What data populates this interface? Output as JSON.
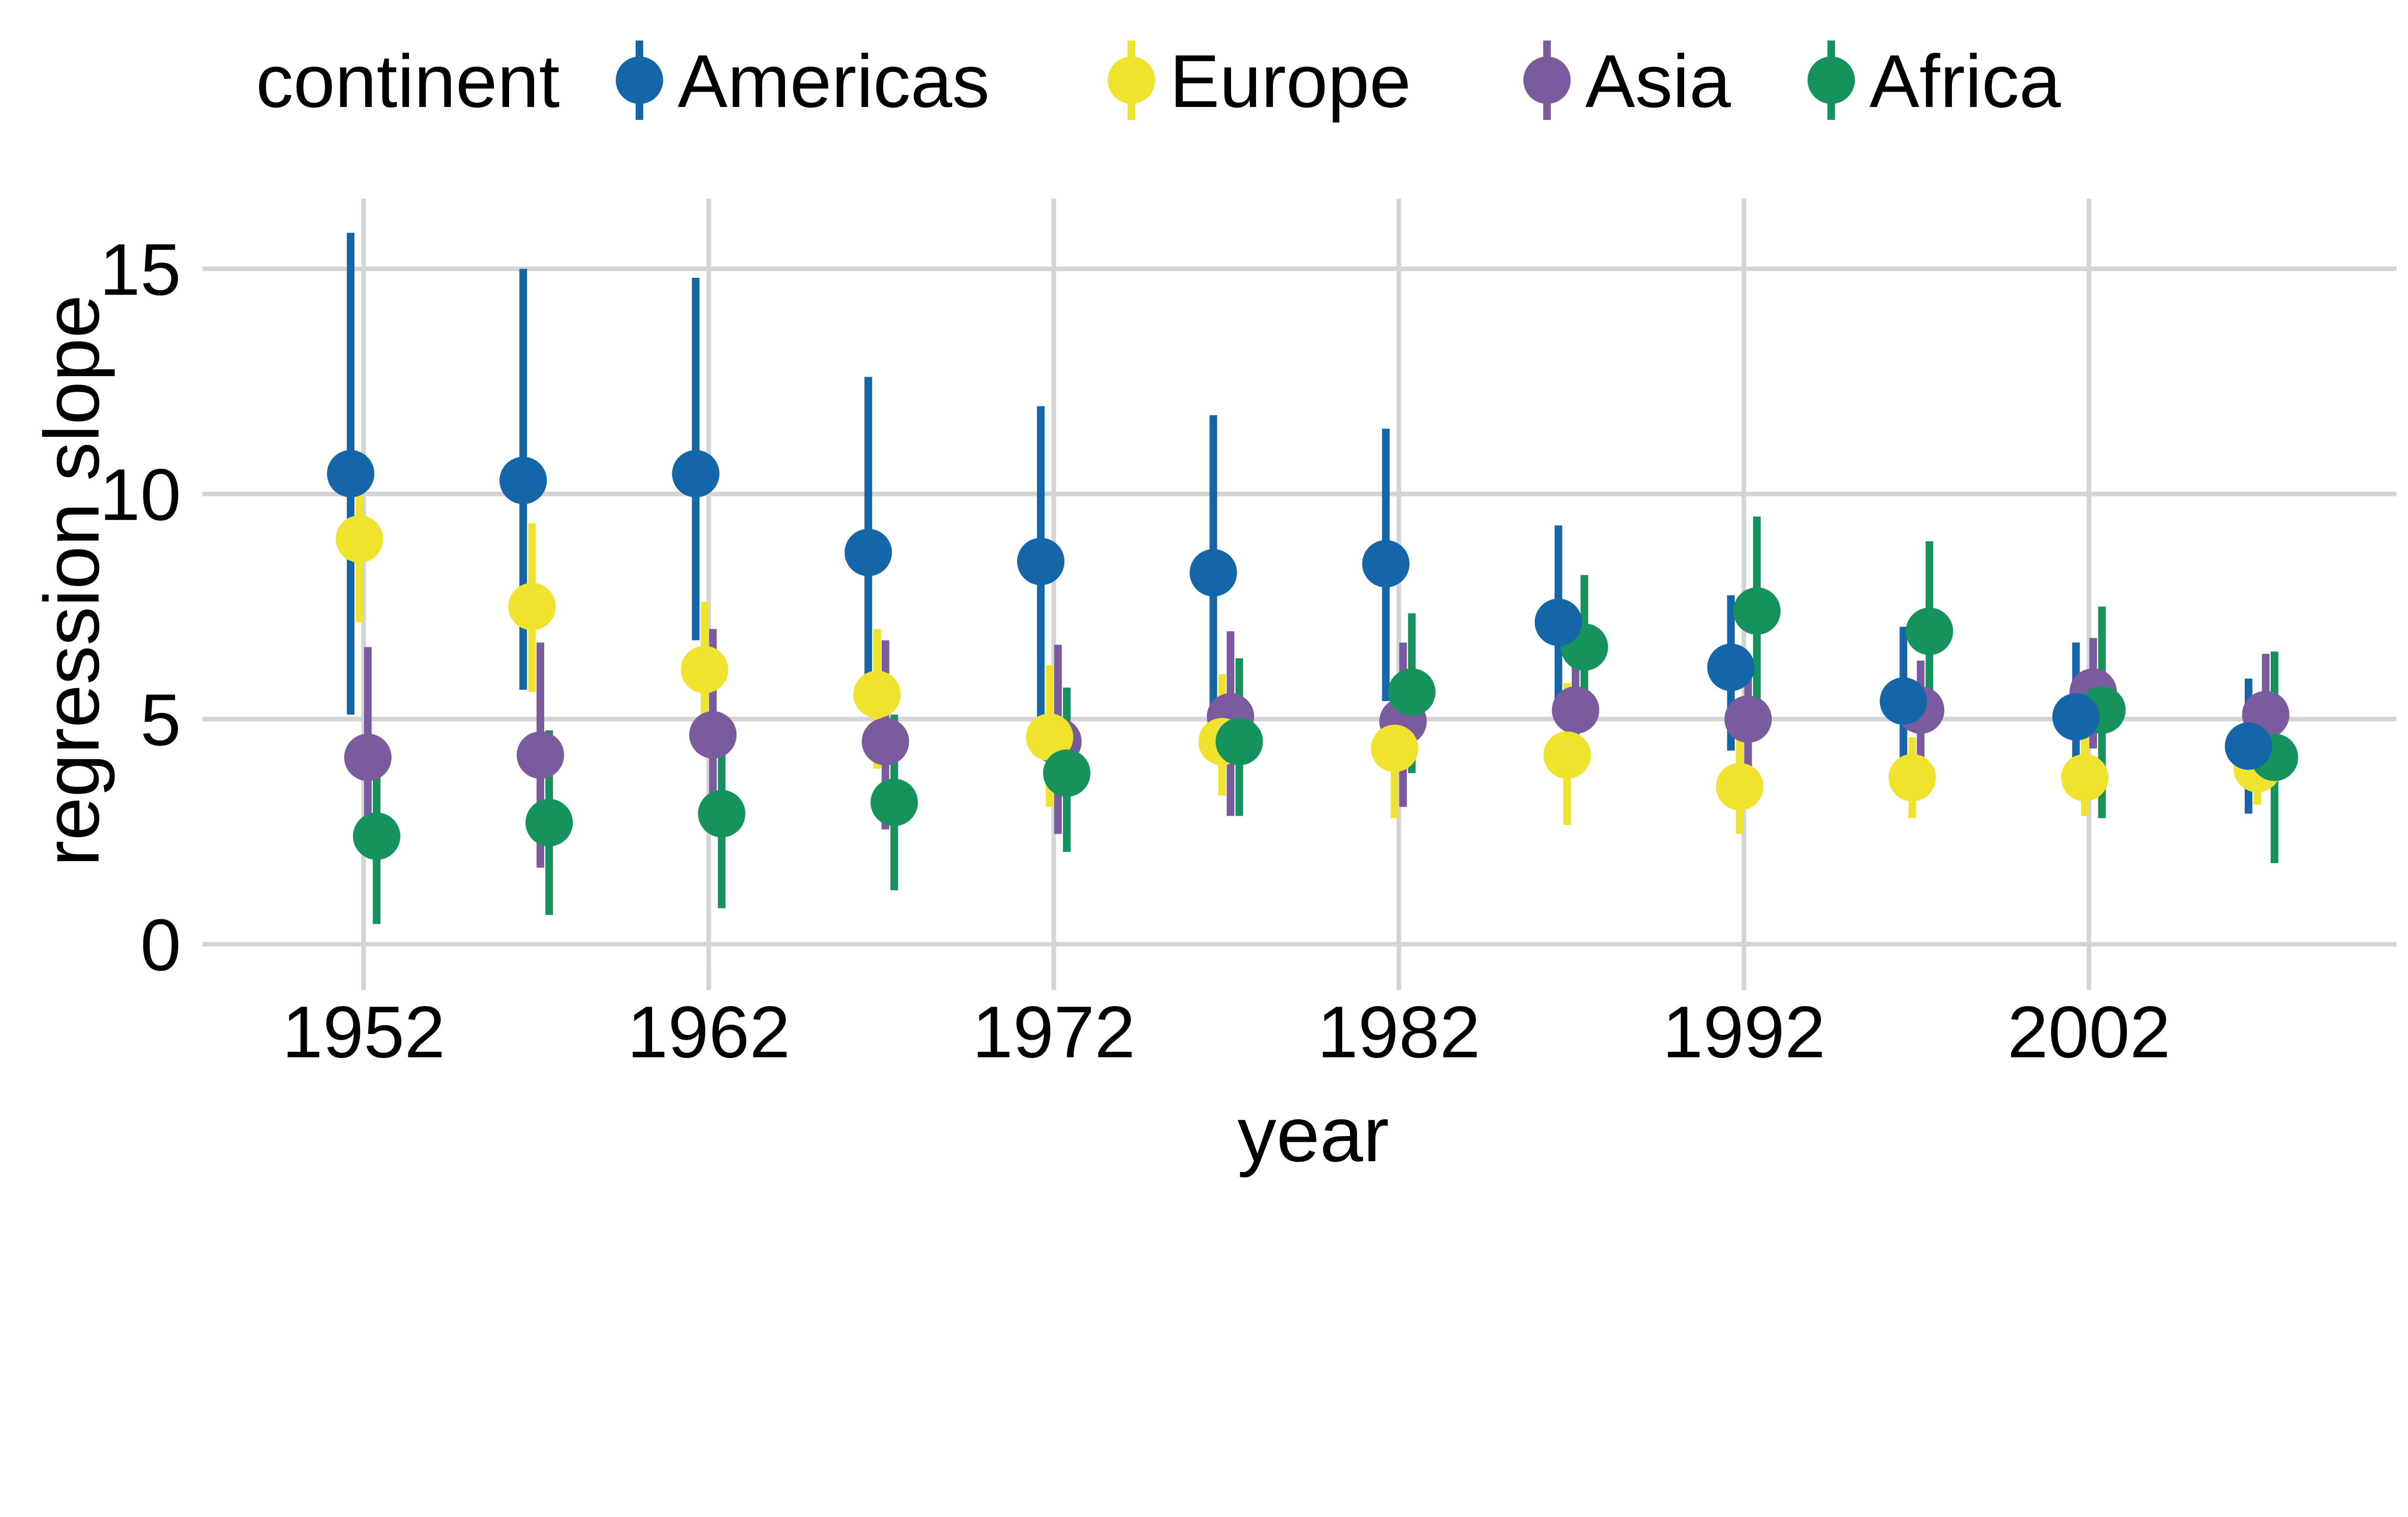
{
  "legend": {
    "title": "continent",
    "items": [
      {
        "label": "Americas",
        "color": "#1466A8"
      },
      {
        "label": "Europe",
        "color": "#F0E32D"
      },
      {
        "label": "Asia",
        "color": "#7A5C9E"
      },
      {
        "label": "Africa",
        "color": "#16925C"
      }
    ]
  },
  "axes": {
    "x": {
      "title": "year",
      "tick_labels": [
        "1952",
        "1962",
        "1972",
        "1982",
        "1992",
        "2002"
      ]
    },
    "y": {
      "title": "regression slope",
      "tick_labels": [
        "0",
        "5",
        "10",
        "15"
      ],
      "tick_values": [
        0,
        5,
        10,
        15
      ]
    }
  },
  "chart_data": {
    "type": "scatter",
    "subtype": "pointrange-dodged",
    "title": "",
    "xlabel": "year",
    "ylabel": "regression slope",
    "x_categories": [
      1952,
      1957,
      1962,
      1967,
      1972,
      1977,
      1982,
      1987,
      1992,
      1997,
      2002,
      2007
    ],
    "x_labeled_ticks": [
      1952,
      1962,
      1972,
      1982,
      1992,
      2002
    ],
    "ylim": [
      -0.4,
      16.5
    ],
    "y_gridlines": [
      0,
      5,
      10,
      15
    ],
    "grid": true,
    "legend_position": "top",
    "grid_color": "#D4D4D4",
    "series": [
      {
        "name": "Americas",
        "color": "#1466A8",
        "points": [
          {
            "year": 1952,
            "y": 10.45,
            "ymin": 5.1,
            "ymax": 15.8
          },
          {
            "year": 1957,
            "y": 10.3,
            "ymin": 5.65,
            "ymax": 15.0
          },
          {
            "year": 1962,
            "y": 10.45,
            "ymin": 6.75,
            "ymax": 14.8
          },
          {
            "year": 1967,
            "y": 8.7,
            "ymin": 5.9,
            "ymax": 12.6
          },
          {
            "year": 1972,
            "y": 8.5,
            "ymin": 5.05,
            "ymax": 11.95
          },
          {
            "year": 1977,
            "y": 8.25,
            "ymin": 5.0,
            "ymax": 11.75
          },
          {
            "year": 1982,
            "y": 8.45,
            "ymin": 5.4,
            "ymax": 11.45
          },
          {
            "year": 1987,
            "y": 7.15,
            "ymin": 5.0,
            "ymax": 9.3
          },
          {
            "year": 1992,
            "y": 6.15,
            "ymin": 4.3,
            "ymax": 7.75
          },
          {
            "year": 1997,
            "y": 5.4,
            "ymin": 3.8,
            "ymax": 7.05
          },
          {
            "year": 2002,
            "y": 5.05,
            "ymin": 3.3,
            "ymax": 6.7
          },
          {
            "year": 2007,
            "y": 4.4,
            "ymin": 2.9,
            "ymax": 5.9
          }
        ]
      },
      {
        "name": "Europe",
        "color": "#F0E32D",
        "points": [
          {
            "year": 1952,
            "y": 9.0,
            "ymin": 7.15,
            "ymax": 10.9
          },
          {
            "year": 1957,
            "y": 7.5,
            "ymin": 5.6,
            "ymax": 9.35
          },
          {
            "year": 1962,
            "y": 6.1,
            "ymin": 5.1,
            "ymax": 7.6
          },
          {
            "year": 1967,
            "y": 5.55,
            "ymin": 3.9,
            "ymax": 7.0
          },
          {
            "year": 1972,
            "y": 4.6,
            "ymin": 3.05,
            "ymax": 6.2
          },
          {
            "year": 1977,
            "y": 4.5,
            "ymin": 3.3,
            "ymax": 6.0
          },
          {
            "year": 1982,
            "y": 4.35,
            "ymin": 2.8,
            "ymax": 5.9
          },
          {
            "year": 1987,
            "y": 4.2,
            "ymin": 2.65,
            "ymax": 5.8
          },
          {
            "year": 1992,
            "y": 3.5,
            "ymin": 2.45,
            "ymax": 4.55
          },
          {
            "year": 1997,
            "y": 3.7,
            "ymin": 2.8,
            "ymax": 4.6
          },
          {
            "year": 2002,
            "y": 3.7,
            "ymin": 2.85,
            "ymax": 4.6
          },
          {
            "year": 2007,
            "y": 3.9,
            "ymin": 3.1,
            "ymax": 4.7
          }
        ]
      },
      {
        "name": "Asia",
        "color": "#7A5C9E",
        "points": [
          {
            "year": 1952,
            "y": 4.15,
            "ymin": 2.0,
            "ymax": 6.6
          },
          {
            "year": 1957,
            "y": 4.2,
            "ymin": 1.7,
            "ymax": 6.7
          },
          {
            "year": 1962,
            "y": 4.65,
            "ymin": 2.9,
            "ymax": 7.0
          },
          {
            "year": 1967,
            "y": 4.5,
            "ymin": 2.55,
            "ymax": 6.75
          },
          {
            "year": 1972,
            "y": 4.5,
            "ymin": 2.45,
            "ymax": 6.65
          },
          {
            "year": 1977,
            "y": 5.05,
            "ymin": 2.85,
            "ymax": 6.95
          },
          {
            "year": 1982,
            "y": 4.95,
            "ymin": 3.05,
            "ymax": 6.7
          },
          {
            "year": 1987,
            "y": 5.2,
            "ymin": 4.1,
            "ymax": 6.3
          },
          {
            "year": 1992,
            "y": 5.0,
            "ymin": 3.95,
            "ymax": 6.05
          },
          {
            "year": 1997,
            "y": 5.2,
            "ymin": 4.1,
            "ymax": 6.3
          },
          {
            "year": 2002,
            "y": 5.6,
            "ymin": 4.35,
            "ymax": 6.8
          },
          {
            "year": 2007,
            "y": 5.1,
            "ymin": 3.75,
            "ymax": 6.45
          }
        ]
      },
      {
        "name": "Africa",
        "color": "#16925C",
        "points": [
          {
            "year": 1952,
            "y": 2.4,
            "ymin": 0.45,
            "ymax": 4.35
          },
          {
            "year": 1957,
            "y": 2.7,
            "ymin": 0.65,
            "ymax": 4.75
          },
          {
            "year": 1962,
            "y": 2.9,
            "ymin": 0.8,
            "ymax": 5.0
          },
          {
            "year": 1967,
            "y": 3.15,
            "ymin": 1.2,
            "ymax": 5.1
          },
          {
            "year": 1972,
            "y": 3.8,
            "ymin": 2.05,
            "ymax": 5.7
          },
          {
            "year": 1977,
            "y": 4.5,
            "ymin": 2.85,
            "ymax": 6.35
          },
          {
            "year": 1982,
            "y": 5.6,
            "ymin": 3.8,
            "ymax": 7.35
          },
          {
            "year": 1987,
            "y": 6.6,
            "ymin": 5.0,
            "ymax": 8.2
          },
          {
            "year": 1992,
            "y": 7.4,
            "ymin": 5.3,
            "ymax": 9.5
          },
          {
            "year": 1997,
            "y": 6.95,
            "ymin": 4.95,
            "ymax": 8.95
          },
          {
            "year": 2002,
            "y": 5.2,
            "ymin": 2.8,
            "ymax": 7.5
          },
          {
            "year": 2007,
            "y": 4.15,
            "ymin": 1.8,
            "ymax": 6.5
          }
        ]
      }
    ]
  }
}
